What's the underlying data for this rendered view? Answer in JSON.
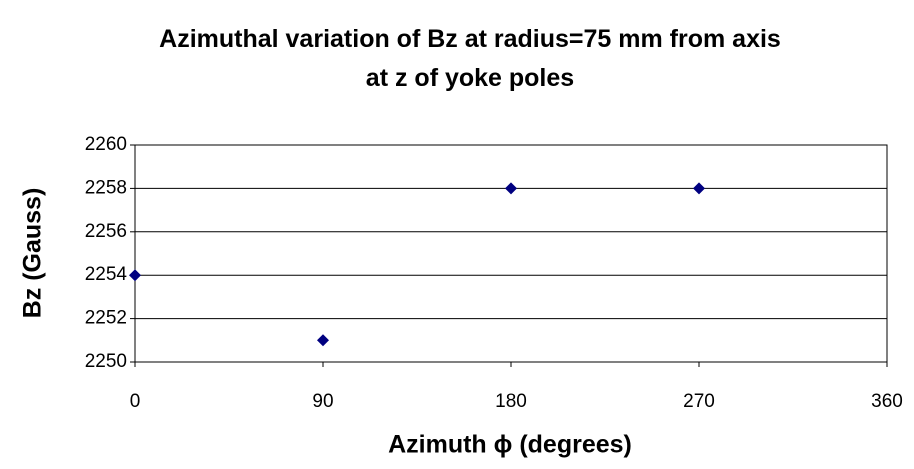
{
  "chart_data": {
    "type": "scatter",
    "title": "Azimuthal variation of Bz at radius=75 mm from axis at z of yoke poles",
    "xlabel": "Azimuth ϕ  (degrees)",
    "ylabel": "Bz (Gauss)",
    "series": [
      {
        "name": "Bz",
        "color": "#000080",
        "x": [
          0,
          90,
          180,
          270
        ],
        "values": [
          2254,
          2251,
          2258,
          2258
        ]
      }
    ],
    "xlim": [
      0,
      360
    ],
    "xticks": [
      0,
      90,
      180,
      270,
      360
    ],
    "ylim": [
      2250,
      2260
    ],
    "yticks": [
      2250,
      2252,
      2254,
      2256,
      2258,
      2260
    ],
    "grid": true
  }
}
